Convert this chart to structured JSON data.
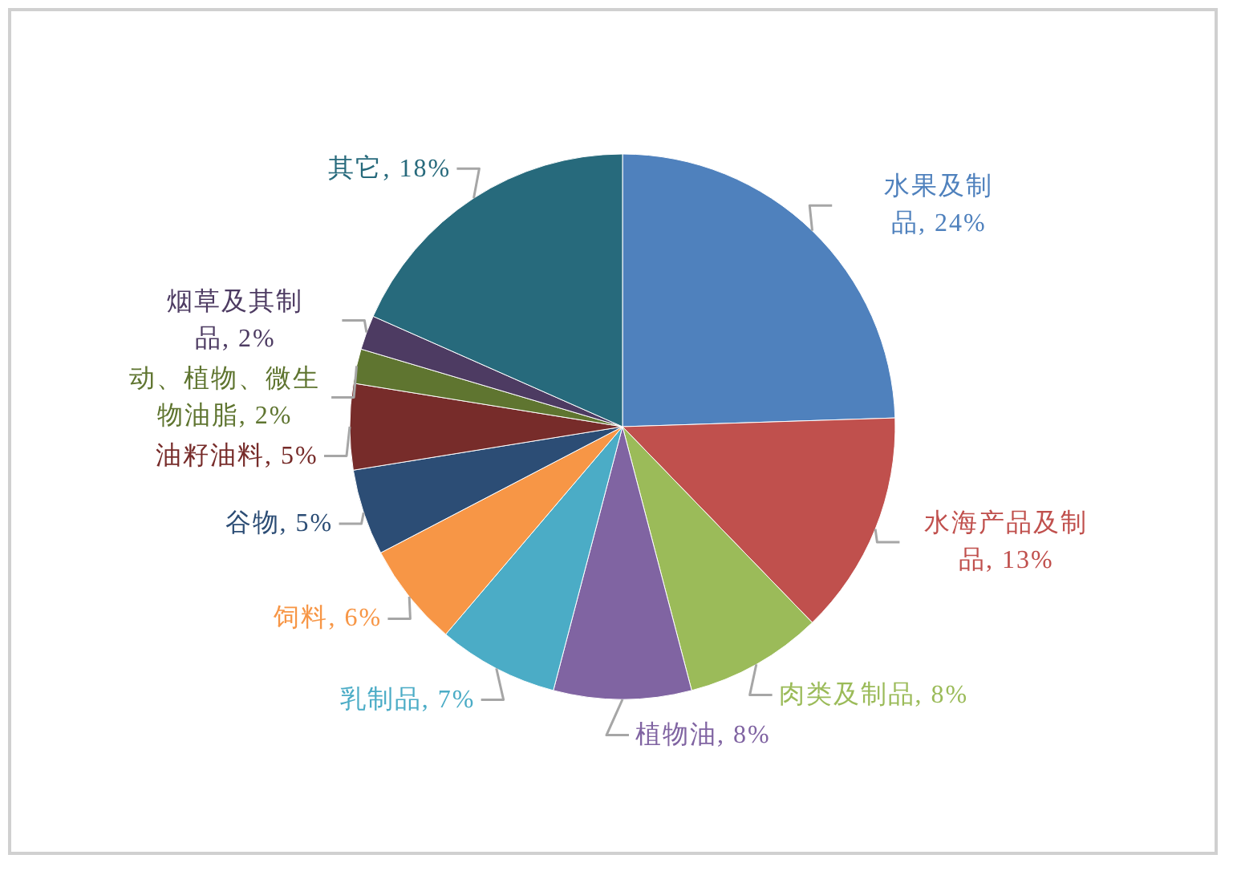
{
  "chart_data": {
    "type": "pie",
    "categories": [
      "水果及制品",
      "水海产品及制品",
      "肉类及制品",
      "植物油",
      "乳制品",
      "饲料",
      "谷物",
      "油籽油料",
      "动、植物、微生物油脂",
      "烟草及其制品",
      "其它"
    ],
    "value_labels": [
      "24%",
      "13%",
      "8%",
      "8%",
      "7%",
      "6%",
      "5%",
      "5%",
      "2%",
      "2%",
      "18%"
    ],
    "values": [
      24,
      13,
      8,
      8,
      7,
      6,
      5,
      5,
      2,
      2,
      18
    ],
    "colors": [
      "#4f81bd",
      "#c0504d",
      "#9bbb59",
      "#8064a2",
      "#4bacc6",
      "#f79646",
      "#2c4d75",
      "#772c2a",
      "#5f7530",
      "#4d3b62",
      "#276a7c"
    ],
    "data_labels": true
  }
}
